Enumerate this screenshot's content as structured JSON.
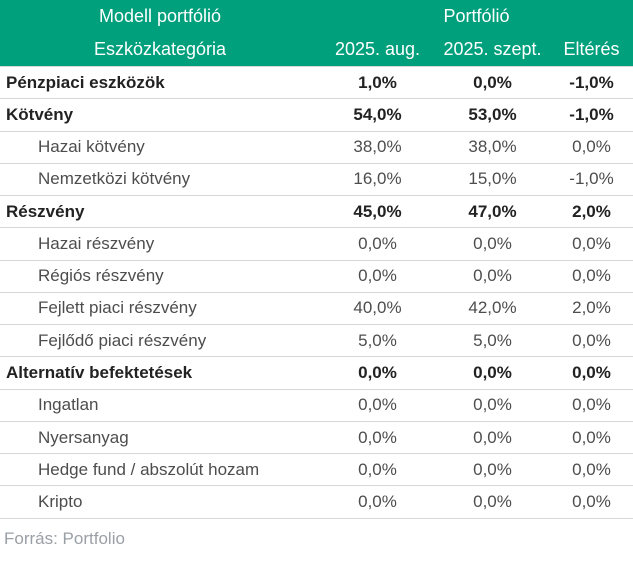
{
  "colors": {
    "accent": "#00a07d",
    "divider": "#d8d8d8",
    "body_text": "#4d4d4d",
    "bold_text": "#222222",
    "footer_text": "#9aa0a6"
  },
  "header": {
    "group_left": "Modell portfólió",
    "group_right": "Portfólió",
    "col_category": "Eszközkategória",
    "col_aug": "2025. aug.",
    "col_sept": "2025. szept.",
    "col_diff": "Eltérés"
  },
  "rows": [
    {
      "label": "Pénzpiaci eszközök",
      "aug": "1,0%",
      "sept": "0,0%",
      "diff": "-1,0%"
    },
    {
      "label": "Kötvény",
      "aug": "54,0%",
      "sept": "53,0%",
      "diff": "-1,0%"
    },
    {
      "label": "Hazai kötvény",
      "aug": "38,0%",
      "sept": "38,0%",
      "diff": "0,0%"
    },
    {
      "label": "Nemzetközi kötvény",
      "aug": "16,0%",
      "sept": "15,0%",
      "diff": "-1,0%"
    },
    {
      "label": "Részvény",
      "aug": "45,0%",
      "sept": "47,0%",
      "diff": "2,0%"
    },
    {
      "label": "Hazai részvény",
      "aug": "0,0%",
      "sept": "0,0%",
      "diff": "0,0%"
    },
    {
      "label": "Régiós részvény",
      "aug": "0,0%",
      "sept": "0,0%",
      "diff": "0,0%"
    },
    {
      "label": "Fejlett piaci részvény",
      "aug": "40,0%",
      "sept": "42,0%",
      "diff": "2,0%"
    },
    {
      "label": "Fejlődő piaci részvény",
      "aug": "5,0%",
      "sept": "5,0%",
      "diff": "0,0%"
    },
    {
      "label": "Alternatív befektetések",
      "aug": "0,0%",
      "sept": "0,0%",
      "diff": "0,0%"
    },
    {
      "label": "Ingatlan",
      "aug": "0,0%",
      "sept": "0,0%",
      "diff": "0,0%"
    },
    {
      "label": "Nyersanyag",
      "aug": "0,0%",
      "sept": "0,0%",
      "diff": "0,0%"
    },
    {
      "label": "Hedge fund / abszolút hozam",
      "aug": "0,0%",
      "sept": "0,0%",
      "diff": "0,0%"
    },
    {
      "label": "Kripto",
      "aug": "0,0%",
      "sept": "0,0%",
      "diff": "0,0%"
    }
  ],
  "footer": {
    "source": "Forrás: Portfolio"
  },
  "chart_data": {
    "type": "table",
    "title": "Modell portfólió / Portfólió",
    "columns": [
      "Eszközkategória",
      "2025. aug.",
      "2025. szept.",
      "Eltérés"
    ],
    "unit": "percent",
    "rows": [
      {
        "category": "Pénzpiaci eszközök",
        "aug_2025": 1.0,
        "sept_2025": 0.0,
        "diff": -1.0,
        "level": "group"
      },
      {
        "category": "Kötvény",
        "aug_2025": 54.0,
        "sept_2025": 53.0,
        "diff": -1.0,
        "level": "group"
      },
      {
        "category": "Hazai kötvény",
        "aug_2025": 38.0,
        "sept_2025": 38.0,
        "diff": 0.0,
        "level": "sub"
      },
      {
        "category": "Nemzetközi kötvény",
        "aug_2025": 16.0,
        "sept_2025": 15.0,
        "diff": -1.0,
        "level": "sub"
      },
      {
        "category": "Részvény",
        "aug_2025": 45.0,
        "sept_2025": 47.0,
        "diff": 2.0,
        "level": "group"
      },
      {
        "category": "Hazai részvény",
        "aug_2025": 0.0,
        "sept_2025": 0.0,
        "diff": 0.0,
        "level": "sub"
      },
      {
        "category": "Régiós részvény",
        "aug_2025": 0.0,
        "sept_2025": 0.0,
        "diff": 0.0,
        "level": "sub"
      },
      {
        "category": "Fejlett piaci részvény",
        "aug_2025": 40.0,
        "sept_2025": 42.0,
        "diff": 2.0,
        "level": "sub"
      },
      {
        "category": "Fejlődő piaci részvény",
        "aug_2025": 5.0,
        "sept_2025": 5.0,
        "diff": 0.0,
        "level": "sub"
      },
      {
        "category": "Alternatív befektetések",
        "aug_2025": 0.0,
        "sept_2025": 0.0,
        "diff": 0.0,
        "level": "group"
      },
      {
        "category": "Ingatlan",
        "aug_2025": 0.0,
        "sept_2025": 0.0,
        "diff": 0.0,
        "level": "sub"
      },
      {
        "category": "Nyersanyag",
        "aug_2025": 0.0,
        "sept_2025": 0.0,
        "diff": 0.0,
        "level": "sub"
      },
      {
        "category": "Hedge fund / abszolút hozam",
        "aug_2025": 0.0,
        "sept_2025": 0.0,
        "diff": 0.0,
        "level": "sub"
      },
      {
        "category": "Kripto",
        "aug_2025": 0.0,
        "sept_2025": 0.0,
        "diff": 0.0,
        "level": "sub"
      }
    ],
    "source": "Forrás: Portfolio"
  }
}
